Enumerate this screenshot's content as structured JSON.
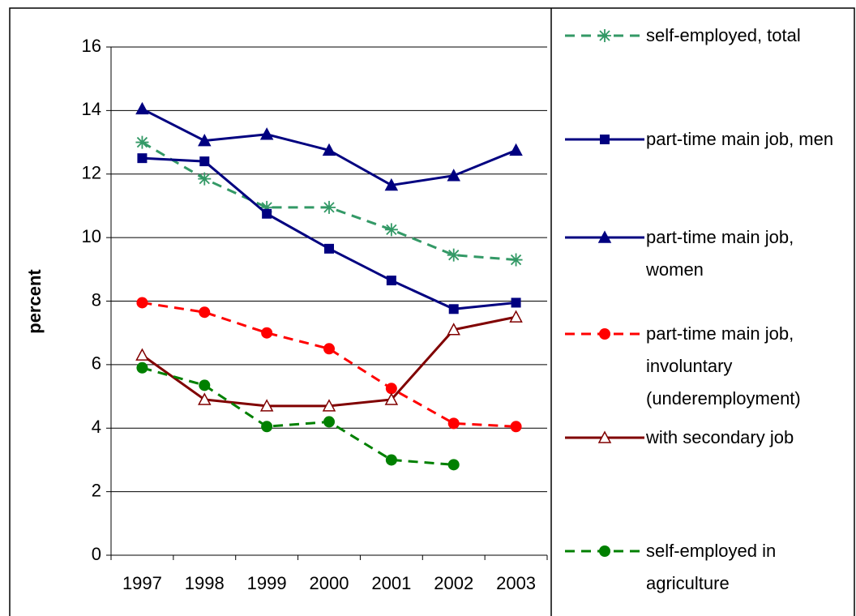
{
  "chart_data": {
    "type": "line",
    "y_label": "percent",
    "categories": [
      "1997",
      "1998",
      "1999",
      "2000",
      "2001",
      "2002",
      "2003"
    ],
    "ylim": [
      0,
      16
    ],
    "yticks": [
      0,
      2,
      4,
      6,
      8,
      10,
      12,
      14,
      16
    ],
    "grid": true,
    "legend": "right",
    "series": [
      {
        "name": "self-employed, total",
        "color": "#339966",
        "dash": true,
        "marker": "star",
        "values": [
          13.0,
          11.85,
          10.95,
          10.95,
          10.25,
          9.45,
          9.3
        ]
      },
      {
        "name": "part-time main job, men",
        "color": "#000080",
        "dash": false,
        "marker": "square",
        "values": [
          12.5,
          12.4,
          10.75,
          9.65,
          8.65,
          7.75,
          7.95
        ]
      },
      {
        "name": "part-time main job, women",
        "color": "#000080",
        "dash": false,
        "marker": "triangle",
        "values": [
          14.05,
          13.05,
          13.25,
          12.75,
          11.65,
          11.95,
          12.75
        ]
      },
      {
        "name": "part-time main job, involuntary (underemployment)",
        "color": "#ff0000",
        "dash": true,
        "marker": "circle",
        "values": [
          7.95,
          7.65,
          7.0,
          6.5,
          5.25,
          4.15,
          4.05
        ]
      },
      {
        "name": "with secondary job",
        "color": "#800000",
        "dash": false,
        "marker": "open-triangle",
        "values": [
          6.3,
          4.9,
          4.7,
          4.7,
          4.9,
          7.1,
          7.5
        ]
      },
      {
        "name": "self-employed in agriculture",
        "color": "#008000",
        "dash": true,
        "marker": "circle",
        "values": [
          5.9,
          5.35,
          4.05,
          4.2,
          3.0,
          2.85,
          null
        ]
      }
    ]
  }
}
